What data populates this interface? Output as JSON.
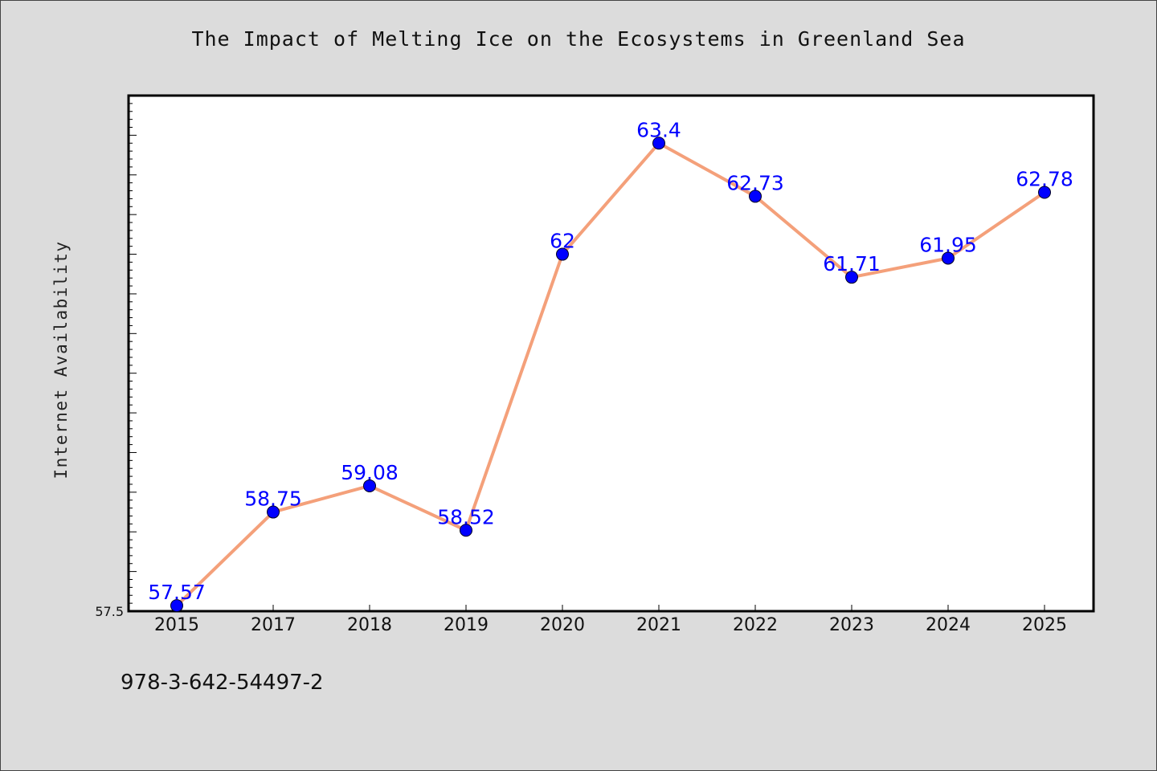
{
  "page": {
    "title": "The Impact of Melting Ice on the Ecosystems in Greenland Sea",
    "footer_text": "978-3-642-54497-2"
  },
  "chart_data": {
    "type": "line",
    "title": "The Impact of Melting Ice on the Ecosystems in Greenland Sea",
    "xlabel": "",
    "ylabel": "Internet Availability",
    "categories": [
      "2015",
      "2017",
      "2018",
      "2019",
      "2020",
      "2021",
      "2022",
      "2023",
      "2024",
      "2025"
    ],
    "series": [
      {
        "values": [
          57.57,
          58.75,
          59.08,
          58.52,
          62,
          63.4,
          62.73,
          61.71,
          61.95,
          62.78
        ],
        "line_color": "#f4a07a",
        "marker_color": "#0000ff"
      }
    ],
    "data_labels": [
      "57.57",
      "58.75",
      "59.08",
      "58.52",
      "62",
      "63.4",
      "62.73",
      "61.71",
      "61.95",
      "62.78"
    ],
    "ylim": [
      57.5,
      64.0
    ],
    "y_tick_labels": [
      "57.5"
    ],
    "grid": false,
    "legend": "none",
    "background": "#ffffff",
    "figure_background": "#dcdcdc"
  }
}
